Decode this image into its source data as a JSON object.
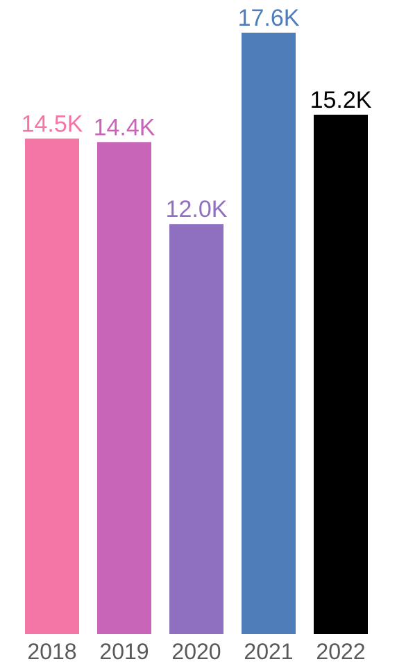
{
  "chart_data": {
    "type": "bar",
    "title": "",
    "xlabel": "",
    "ylabel": "",
    "grid": false,
    "legend": "none",
    "categories": [
      "2018",
      "2019",
      "2020",
      "2021",
      "2022"
    ],
    "values": [
      14.5,
      14.4,
      12.0,
      17.6,
      15.2
    ],
    "value_unit": "K",
    "data_labels": [
      "14.5K",
      "14.4K",
      "12.0K",
      "17.6K",
      "15.2K"
    ],
    "ylim": [
      0,
      17.6
    ],
    "colors": [
      "#f476a7",
      "#c965b8",
      "#8f6fc0",
      "#4e7dba",
      "#000000"
    ],
    "label_colors": [
      "#f476a7",
      "#c965b8",
      "#8f6fc0",
      "#4e7dba",
      "#000000"
    ]
  }
}
